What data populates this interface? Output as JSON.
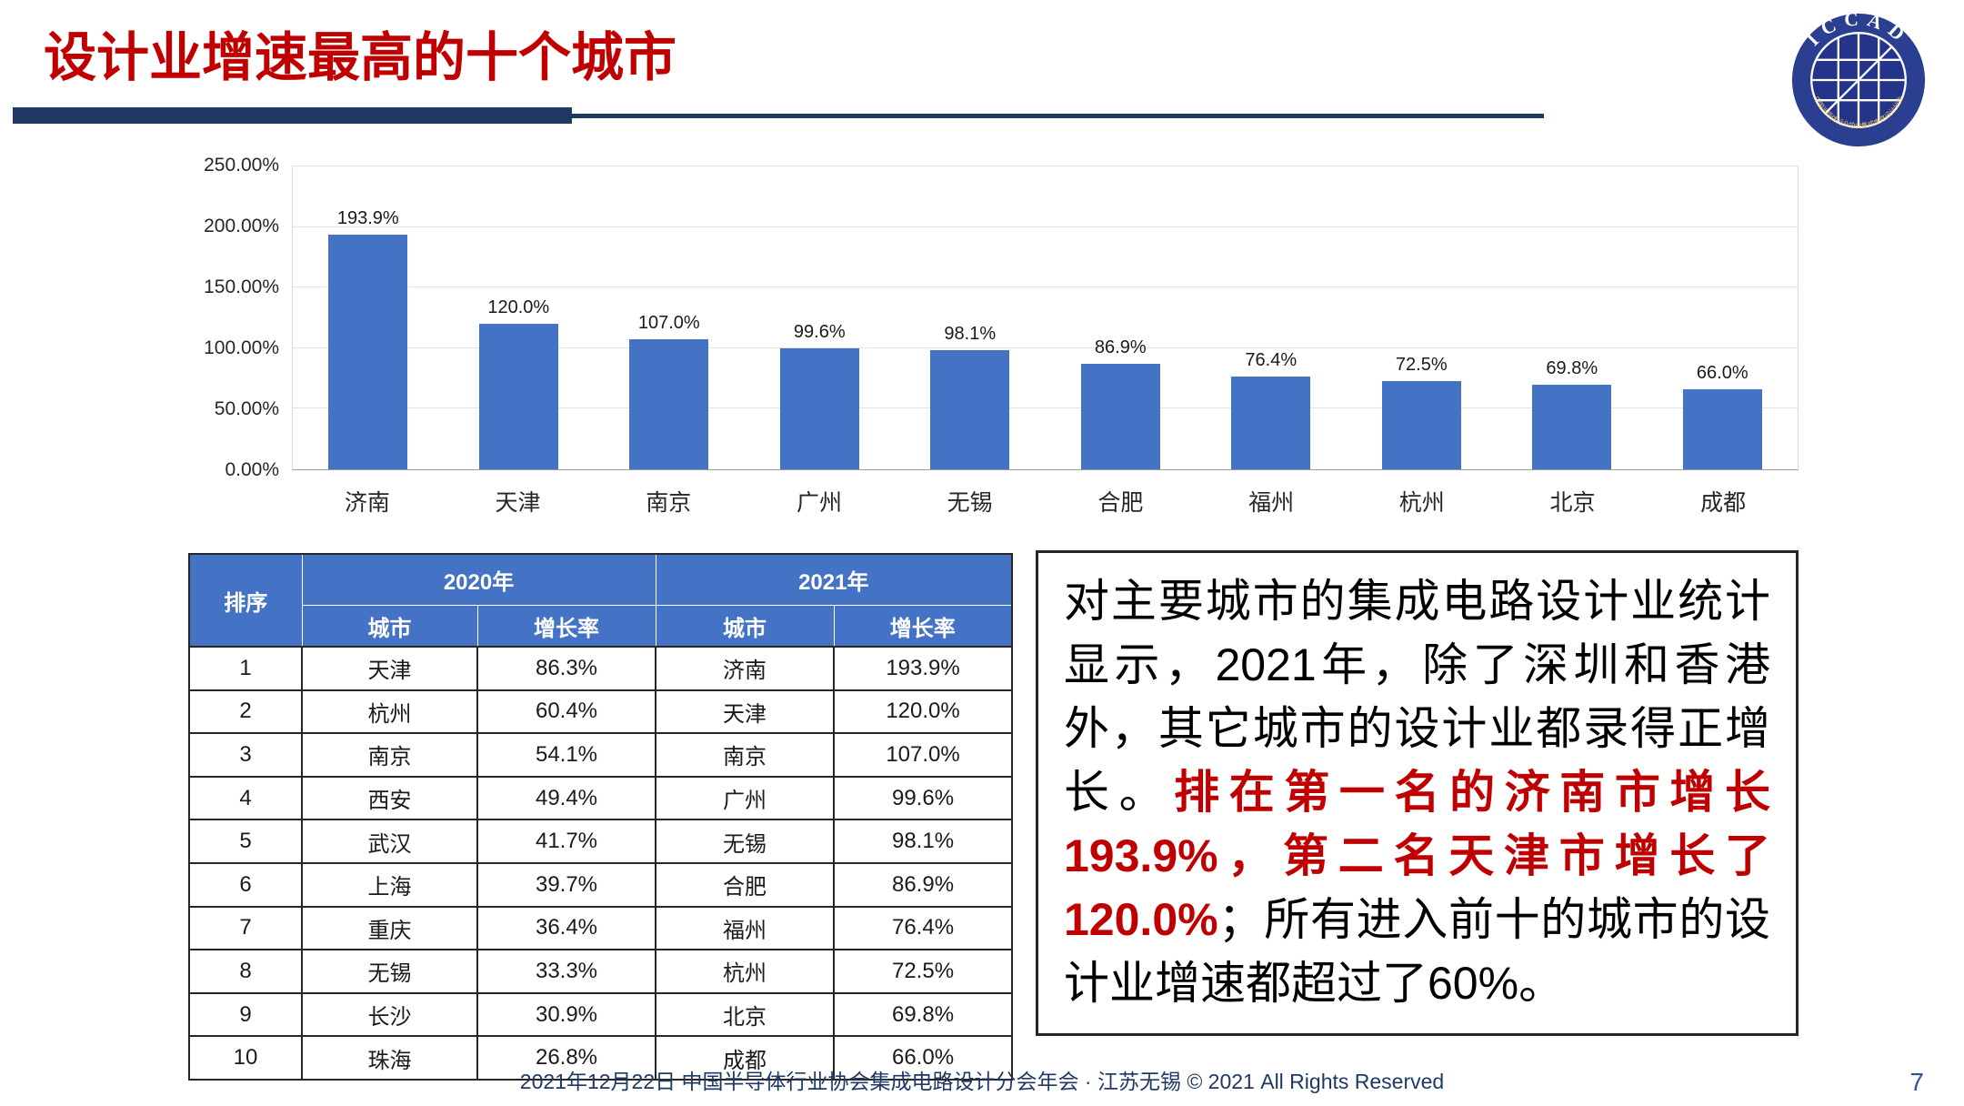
{
  "slide": {
    "title": "设计业增速最高的十个城市",
    "footer": "2021年12月22日 中国半导体行业协会集成电路设计分会年会 · 江苏无锡 © 2021 All Rights Reserved",
    "page_number": "7"
  },
  "logo": {
    "text": "ICCAD",
    "ring_text": "中国半导体行业协会集成电路设计分会"
  },
  "chart_data": {
    "type": "bar",
    "title": "",
    "categories": [
      "济南",
      "天津",
      "南京",
      "广州",
      "无锡",
      "合肥",
      "福州",
      "杭州",
      "北京",
      "成都"
    ],
    "values": [
      193.9,
      120.0,
      107.0,
      99.6,
      98.1,
      86.9,
      76.4,
      72.5,
      69.8,
      66.0
    ],
    "value_labels": [
      "193.9%",
      "120.0%",
      "107.0%",
      "99.6%",
      "98.1%",
      "86.9%",
      "76.4%",
      "72.5%",
      "69.8%",
      "66.0%"
    ],
    "xlabel": "",
    "ylabel": "",
    "ylim": [
      0,
      250
    ],
    "ytick_step": 50,
    "yticks": [
      "0.00%",
      "50.00%",
      "100.00%",
      "150.00%",
      "200.00%",
      "250.00%"
    ],
    "bar_color": "#4472C4",
    "grid": true,
    "legend_position": "none"
  },
  "table": {
    "header": {
      "rank": "排序",
      "year2020": "2020年",
      "year2021": "2021年",
      "city": "城市",
      "growth": "增长率"
    },
    "rows": [
      {
        "rank": "1",
        "city2020": "天津",
        "growth2020": "86.3%",
        "city2021": "济南",
        "growth2021": "193.9%"
      },
      {
        "rank": "2",
        "city2020": "杭州",
        "growth2020": "60.4%",
        "city2021": "天津",
        "growth2021": "120.0%"
      },
      {
        "rank": "3",
        "city2020": "南京",
        "growth2020": "54.1%",
        "city2021": "南京",
        "growth2021": "107.0%"
      },
      {
        "rank": "4",
        "city2020": "西安",
        "growth2020": "49.4%",
        "city2021": "广州",
        "growth2021": "99.6%"
      },
      {
        "rank": "5",
        "city2020": "武汉",
        "growth2020": "41.7%",
        "city2021": "无锡",
        "growth2021": "98.1%"
      },
      {
        "rank": "6",
        "city2020": "上海",
        "growth2020": "39.7%",
        "city2021": "合肥",
        "growth2021": "86.9%"
      },
      {
        "rank": "7",
        "city2020": "重庆",
        "growth2020": "36.4%",
        "city2021": "福州",
        "growth2021": "76.4%"
      },
      {
        "rank": "8",
        "city2020": "无锡",
        "growth2020": "33.3%",
        "city2021": "杭州",
        "growth2021": "72.5%"
      },
      {
        "rank": "9",
        "city2020": "长沙",
        "growth2020": "30.9%",
        "city2021": "北京",
        "growth2021": "69.8%"
      },
      {
        "rank": "10",
        "city2020": "珠海",
        "growth2020": "26.8%",
        "city2021": "成都",
        "growth2021": "66.0%"
      }
    ]
  },
  "note": {
    "black1": "对主要城市的集成电路设计业统计显示，2021年，除了深圳和香港外，其它城市的设计业都录得正增长。",
    "red": "排在第一名的济南市增长193.9%，第二名天津市增长了120.0%",
    "black2": "；所有进入前十的城市的设计业增速都超过了60%。"
  }
}
